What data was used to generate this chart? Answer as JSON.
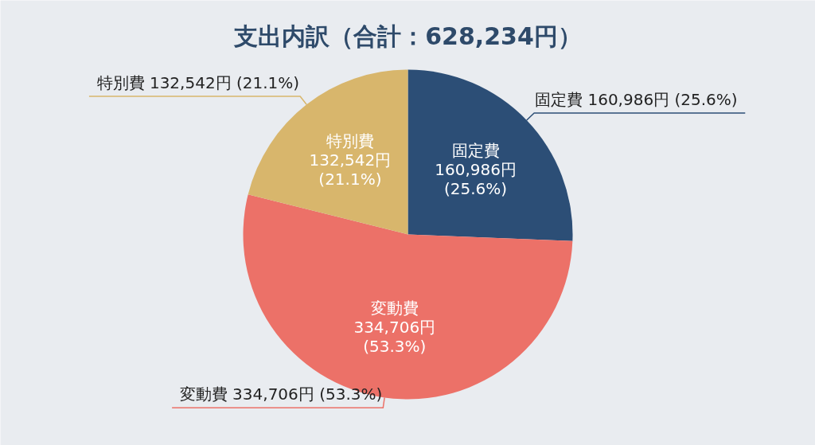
{
  "chart_data": {
    "type": "pie",
    "title": "支出内訳（合計：628,234円）",
    "categories": [
      "固定費",
      "変動費",
      "特別費"
    ],
    "values": [
      160986,
      334706,
      132542
    ],
    "colors": [
      "#2c4e76",
      "#ec7168",
      "#d8b66c"
    ],
    "value_labels": [
      "160,986円\n(25.6%)",
      "334,706円\n(53.3%)",
      "132,542円\n(21.1%)"
    ],
    "annotations": [
      "固定費 160,986円 (25.6%)",
      "変動費 334,706円 (53.3%)",
      "特別費 132,542円 (21.1%)"
    ]
  }
}
